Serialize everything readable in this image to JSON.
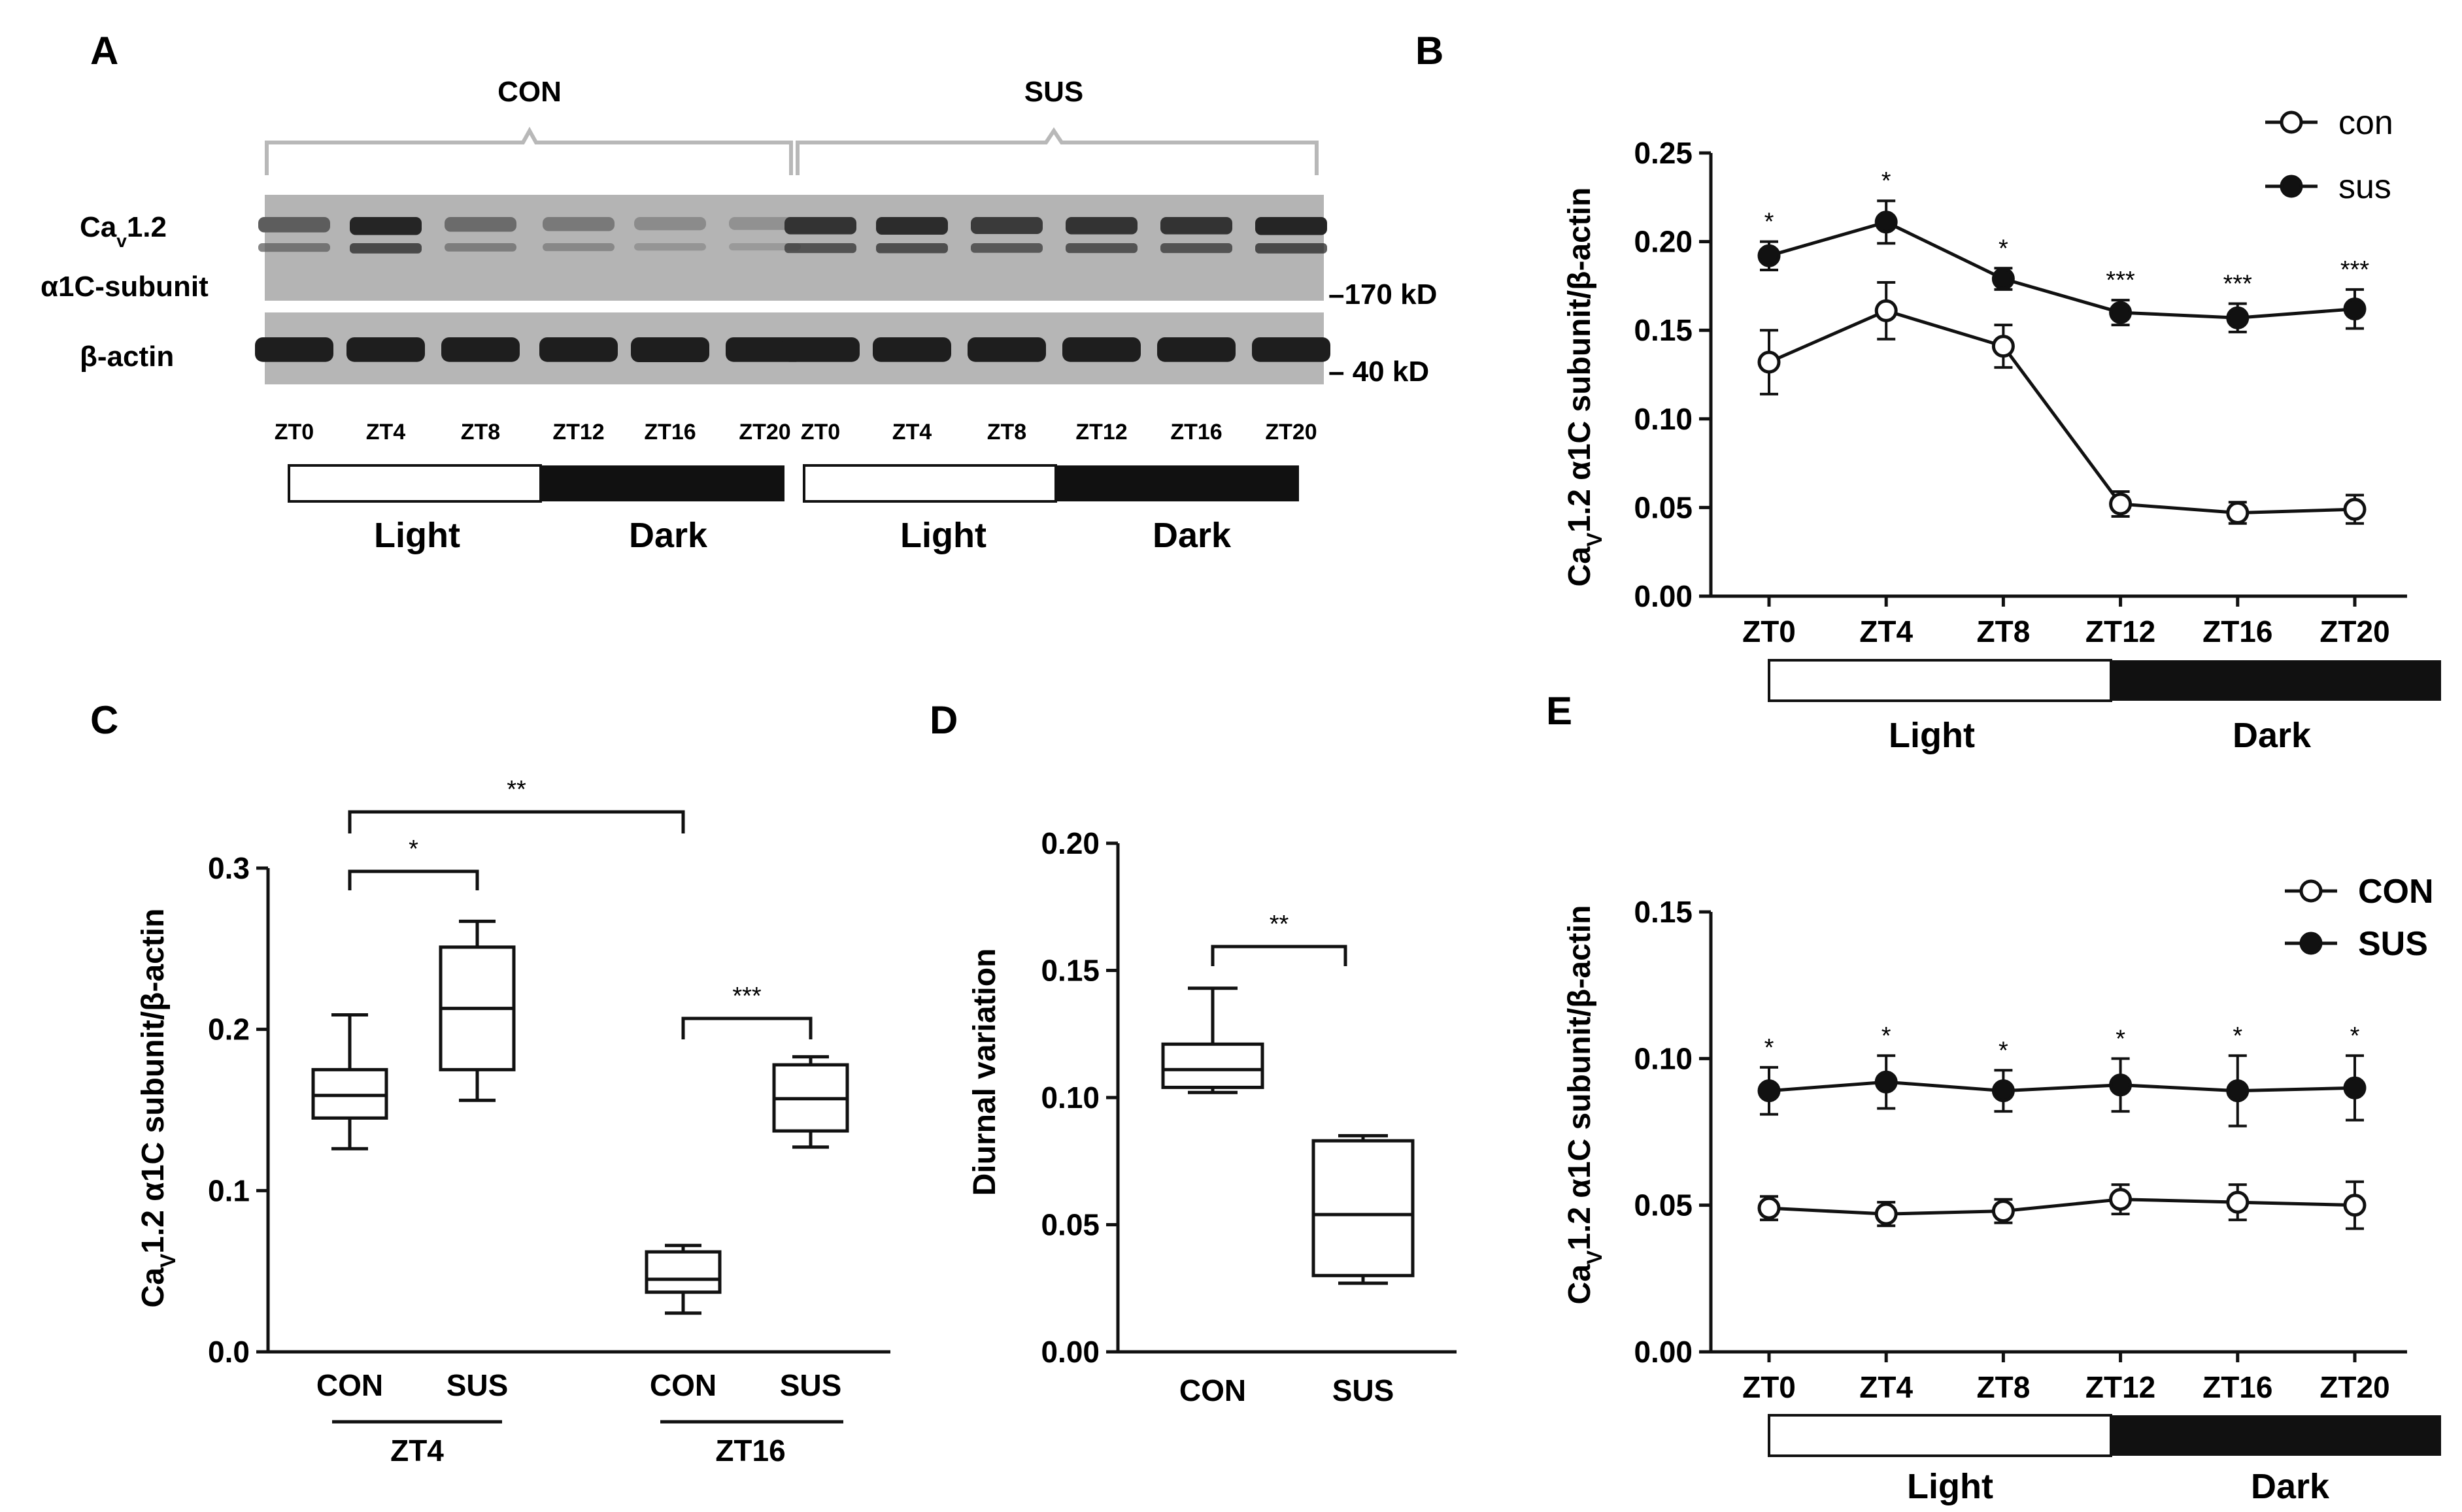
{
  "panels": {
    "A": "A",
    "B": "B",
    "C": "C",
    "D": "D",
    "E": "E"
  },
  "colors": {
    "ink": "#111111",
    "open_fill": "#ffffff",
    "filled": "#111111",
    "blot_bg": "#b4b4b4",
    "band": "#1e1e1e"
  },
  "blot": {
    "group_left": "CON",
    "group_right": "SUS",
    "protein_line1": "Ca",
    "protein_sub": "v",
    "protein_line1_rest": "1.2",
    "protein_line2": "α1C-subunit",
    "loading": "β-actin",
    "marker_170": "–170 kD",
    "marker_40": "– 40 kD",
    "lanes": [
      "ZT0",
      "ZT4",
      "ZT8",
      "ZT12",
      "ZT16",
      "ZT20",
      "ZT0",
      "ZT4",
      "ZT8",
      "ZT12",
      "ZT16",
      "ZT20"
    ],
    "cav_intensity": [
      0.55,
      0.95,
      0.45,
      0.35,
      0.22,
      0.18,
      0.85,
      0.9,
      0.8,
      0.85,
      0.85,
      0.95
    ],
    "actin_intensity": [
      0.95,
      0.95,
      0.95,
      0.95,
      1.0,
      0.95,
      0.95,
      0.95,
      0.95,
      0.95,
      0.95,
      0.95
    ],
    "light": "Light",
    "dark": "Dark"
  },
  "chart_data": [
    {
      "panel": "B",
      "type": "line",
      "categories": [
        "ZT0",
        "ZT4",
        "ZT8",
        "ZT12",
        "ZT16",
        "ZT20"
      ],
      "series": [
        {
          "name": "con",
          "marker": "open",
          "values": [
            0.132,
            0.161,
            0.141,
            0.052,
            0.047,
            0.049
          ],
          "errors": [
            0.018,
            0.016,
            0.012,
            0.007,
            0.006,
            0.008
          ]
        },
        {
          "name": "sus",
          "marker": "filled",
          "values": [
            0.192,
            0.211,
            0.179,
            0.16,
            0.157,
            0.162
          ],
          "errors": [
            0.008,
            0.012,
            0.006,
            0.007,
            0.008,
            0.011
          ]
        }
      ],
      "annotations": [
        "*",
        "*",
        "*",
        "***",
        "***",
        "***"
      ],
      "ylabel": "Ca_V1.2 α1C subunit/β-actin",
      "ylim": [
        0,
        0.25
      ],
      "yticks": [
        "0.00",
        "0.05",
        "0.10",
        "0.15",
        "0.20",
        "0.25"
      ],
      "legend": "top-right",
      "light_label": "Light",
      "dark_label": "Dark"
    },
    {
      "panel": "C",
      "type": "box",
      "groups": [
        {
          "label": "ZT4",
          "boxes": [
            {
              "name": "CON",
              "min": 0.126,
              "q1": 0.145,
              "median": 0.159,
              "q3": 0.175,
              "max": 0.209
            },
            {
              "name": "SUS",
              "min": 0.156,
              "q1": 0.175,
              "median": 0.213,
              "q3": 0.251,
              "max": 0.267
            }
          ]
        },
        {
          "label": "ZT16",
          "boxes": [
            {
              "name": "CON",
              "min": 0.024,
              "q1": 0.037,
              "median": 0.045,
              "q3": 0.062,
              "max": 0.066
            },
            {
              "name": "SUS",
              "min": 0.127,
              "q1": 0.137,
              "median": 0.157,
              "q3": 0.178,
              "max": 0.183
            }
          ]
        }
      ],
      "significance": [
        "*",
        "***",
        "**"
      ],
      "ylabel": "Ca_V1.2 α1C subunit/β-actin",
      "ylim": [
        0,
        0.3
      ],
      "yticks": [
        "0.0",
        "0.1",
        "0.2",
        "0.3"
      ]
    },
    {
      "panel": "D",
      "type": "box",
      "boxes": [
        {
          "name": "CON",
          "min": 0.102,
          "q1": 0.104,
          "median": 0.111,
          "q3": 0.121,
          "max": 0.143
        },
        {
          "name": "SUS",
          "min": 0.027,
          "q1": 0.03,
          "median": 0.054,
          "q3": 0.083,
          "max": 0.085
        }
      ],
      "significance": [
        "**"
      ],
      "ylabel": "Diurnal variation",
      "ylim": [
        0,
        0.2
      ],
      "yticks": [
        "0.00",
        "0.05",
        "0.10",
        "0.15",
        "0.20"
      ]
    },
    {
      "panel": "E",
      "type": "line",
      "categories": [
        "ZT0",
        "ZT4",
        "ZT8",
        "ZT12",
        "ZT16",
        "ZT20"
      ],
      "series": [
        {
          "name": "CON",
          "marker": "open",
          "values": [
            0.049,
            0.047,
            0.048,
            0.052,
            0.051,
            0.05
          ],
          "errors": [
            0.004,
            0.004,
            0.004,
            0.005,
            0.006,
            0.008
          ]
        },
        {
          "name": "SUS",
          "marker": "filled",
          "values": [
            0.089,
            0.092,
            0.089,
            0.091,
            0.089,
            0.09
          ],
          "errors": [
            0.008,
            0.009,
            0.007,
            0.009,
            0.012,
            0.011
          ]
        }
      ],
      "annotations": [
        "*",
        "*",
        "*",
        "*",
        "*",
        "*"
      ],
      "ylabel": "Ca_V1.2 α1C subunit/β-actin",
      "ylim": [
        0,
        0.15
      ],
      "yticks": [
        "0.00",
        "0.05",
        "0.10",
        "0.15"
      ],
      "legend": "top-right",
      "light_label": "Light",
      "dark_label": "Dark"
    }
  ]
}
